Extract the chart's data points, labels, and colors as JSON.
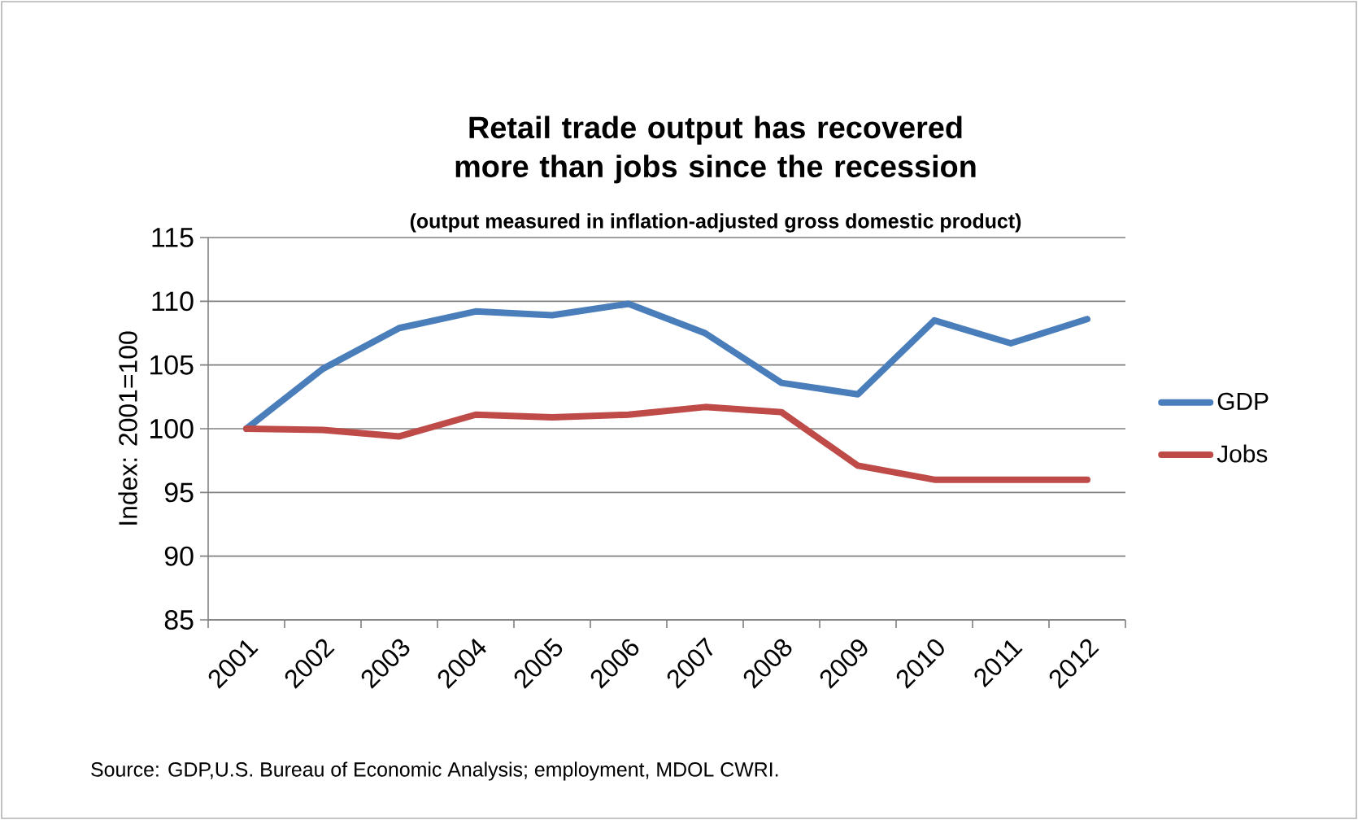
{
  "chart_data": {
    "type": "line",
    "title": "Retail trade output has recovered more than jobs since the recession",
    "subtitle": "(output measured in inflation-adjusted gross domestic product)",
    "ylabel": "Index: 2001=100",
    "categories": [
      "2001",
      "2002",
      "2003",
      "2004",
      "2005",
      "2006",
      "2007",
      "2008",
      "2009",
      "2010",
      "2011",
      "2012"
    ],
    "series": [
      {
        "name": "GDP",
        "color": "#4a7ebb",
        "values": [
          100,
          104.7,
          107.9,
          109.2,
          108.9,
          109.8,
          107.5,
          103.6,
          102.7,
          108.5,
          106.7,
          108.6
        ]
      },
      {
        "name": "Jobs",
        "color": "#be4b48",
        "values": [
          100,
          99.9,
          99.4,
          101.1,
          100.9,
          101.1,
          101.7,
          101.3,
          97.1,
          96.0,
          96.0,
          96.0
        ]
      }
    ],
    "ylim": [
      85,
      115
    ],
    "yticks": [
      85,
      90,
      95,
      100,
      105,
      110,
      115
    ],
    "grid": "y",
    "legend": "right",
    "marker": "none",
    "line_style": "solid",
    "annotations": [
      "Source: GDP,U.S. Bureau of Economic Analysis; employment, MDOL CWRI."
    ]
  }
}
